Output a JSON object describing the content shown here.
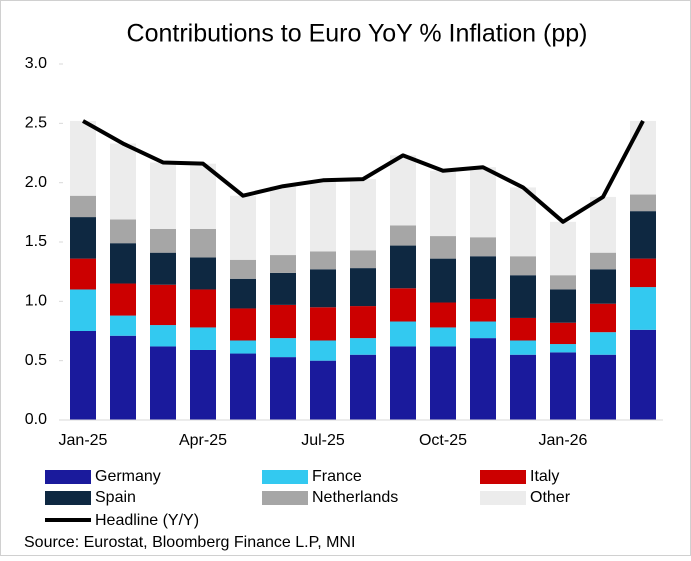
{
  "chart_data": {
    "type": "bar",
    "stacked": true,
    "title": "Contributions to Euro YoY % Inflation (pp)",
    "source": "Source: Eurostat, Bloomberg Finance L.P, MNI",
    "categories": [
      "Jan-25",
      null,
      null,
      "Apr-25",
      null,
      null,
      "Jul-25",
      null,
      null,
      "Oct-25",
      null,
      null,
      "Jan-26",
      null,
      null
    ],
    "series": [
      {
        "name": "Germany",
        "color": "#1a1a9c",
        "values": [
          0.75,
          0.71,
          0.62,
          0.59,
          0.56,
          0.53,
          0.5,
          0.55,
          0.62,
          0.62,
          0.69,
          0.55,
          0.57,
          0.55,
          0.76
        ]
      },
      {
        "name": "France",
        "color": "#33c9f0",
        "values": [
          0.35,
          0.17,
          0.18,
          0.19,
          0.11,
          0.16,
          0.17,
          0.14,
          0.21,
          0.16,
          0.14,
          0.12,
          0.07,
          0.19,
          0.36
        ]
      },
      {
        "name": "Italy",
        "color": "#cc0000",
        "values": [
          0.26,
          0.27,
          0.34,
          0.32,
          0.27,
          0.28,
          0.28,
          0.27,
          0.28,
          0.21,
          0.19,
          0.19,
          0.18,
          0.24,
          0.24
        ]
      },
      {
        "name": "Spain",
        "color": "#0e2841",
        "values": [
          0.35,
          0.34,
          0.27,
          0.27,
          0.25,
          0.27,
          0.32,
          0.32,
          0.36,
          0.37,
          0.36,
          0.36,
          0.28,
          0.29,
          0.4
        ]
      },
      {
        "name": "Netherlands",
        "color": "#a6a6a6",
        "values": [
          0.18,
          0.2,
          0.2,
          0.24,
          0.16,
          0.15,
          0.15,
          0.15,
          0.17,
          0.19,
          0.16,
          0.16,
          0.12,
          0.14,
          0.14
        ]
      },
      {
        "name": "Other",
        "color": "#ececec",
        "values": [
          0.63,
          0.64,
          0.56,
          0.55,
          0.54,
          0.58,
          0.6,
          0.6,
          0.59,
          0.55,
          0.59,
          0.58,
          0.45,
          0.47,
          0.62
        ]
      }
    ],
    "line_series": {
      "name": "Headline (Y/Y)",
      "color": "#000000",
      "values": [
        2.52,
        2.33,
        2.17,
        2.16,
        1.89,
        1.97,
        2.02,
        2.03,
        2.23,
        2.1,
        2.13,
        1.96,
        1.67,
        1.88,
        2.52
      ]
    },
    "ylim": [
      0,
      3
    ],
    "yticks": [
      {
        "value": 0,
        "label": "0.0"
      },
      {
        "value": 0.5,
        "label": "0.5"
      },
      {
        "value": 1,
        "label": "1.0"
      },
      {
        "value": 1.5,
        "label": "1.5"
      },
      {
        "value": 2,
        "label": "2.0"
      },
      {
        "value": 2.5,
        "label": "2.5"
      },
      {
        "value": 3,
        "label": "3.0"
      }
    ],
    "grid": false
  }
}
